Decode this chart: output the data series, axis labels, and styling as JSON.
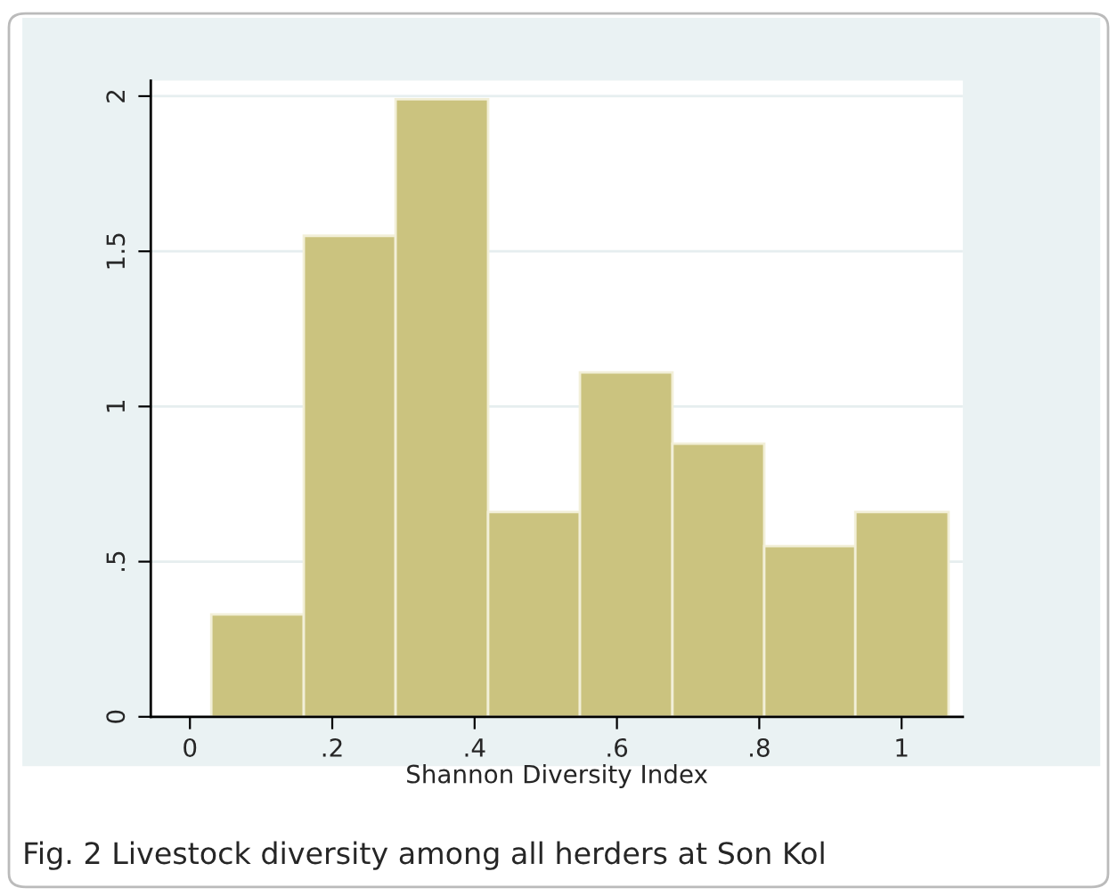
{
  "chart_data": {
    "type": "histogram",
    "xlabel": "Shannon Diversity Index",
    "bins": [
      0.03,
      0.16,
      0.289,
      0.419,
      0.548,
      0.678,
      0.807,
      0.935,
      1.066
    ],
    "values": [
      0.33,
      1.55,
      1.99,
      0.66,
      1.11,
      0.88,
      0.55,
      0.66
    ],
    "color": "#cbc37f",
    "xlim": [
      -0.055,
      1.086
    ],
    "xticks": [
      0,
      {
        "value": 0.2,
        "label": ".2"
      },
      {
        "value": 0.4,
        "label": ".4"
      },
      {
        "value": 0.6,
        "label": ".6"
      },
      {
        "value": 0.8,
        "label": ".8"
      },
      1
    ],
    "ylim": [
      0,
      2.05
    ],
    "yticks": [
      0,
      {
        "value": 0.5,
        "label": ".5"
      },
      1,
      {
        "value": 1.5,
        "label": "1.5"
      },
      2
    ],
    "grid": "y",
    "annotations": [
      "Fig. 2 Livestock diversity among all herders at Son Kol"
    ]
  }
}
